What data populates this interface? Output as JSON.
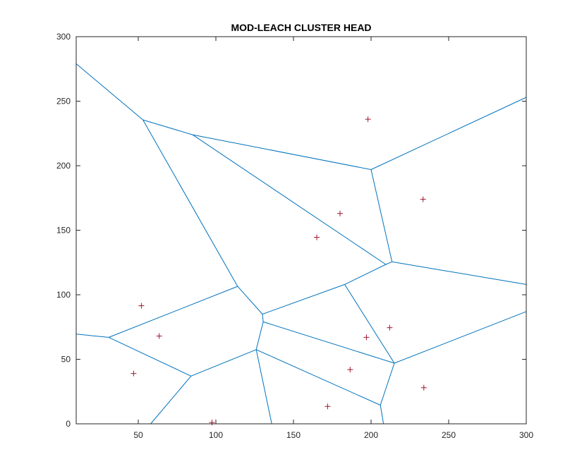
{
  "chart_data": {
    "type": "scatter",
    "title": "MOD-LEACH CLUSTER HEAD",
    "xlabel": "",
    "ylabel": "",
    "xlim": [
      10,
      300
    ],
    "ylim": [
      0,
      300
    ],
    "xticks": [
      50,
      100,
      150,
      200,
      250,
      300
    ],
    "yticks": [
      0,
      50,
      100,
      150,
      200,
      250,
      300
    ],
    "grid": false,
    "colors": {
      "edges": "#0072BD",
      "points": "#A2142F",
      "axes": "#262626"
    },
    "series": [
      {
        "marker": "plus",
        "x": [
          198,
          233.5,
          180,
          165,
          52,
          63.5,
          47,
          212,
          197,
          186.5,
          234,
          172,
          97.5
        ],
        "y": [
          236,
          174,
          163,
          144.5,
          91.5,
          68,
          39,
          74.5,
          67,
          42,
          28,
          13.5,
          1
        ]
      }
    ],
    "voronoi_edges": [
      [
        [
          10,
          279
        ],
        [
          53,
          235.5
        ]
      ],
      [
        [
          53,
          235.5
        ],
        [
          85,
          224
        ]
      ],
      [
        [
          85,
          224
        ],
        [
          200,
          197
        ]
      ],
      [
        [
          200,
          197
        ],
        [
          300,
          253
        ]
      ],
      [
        [
          85,
          224
        ],
        [
          209.5,
          123.5
        ]
      ],
      [
        [
          200,
          197
        ],
        [
          213.5,
          125.5
        ]
      ],
      [
        [
          209.5,
          123.5
        ],
        [
          213.5,
          125.5
        ]
      ],
      [
        [
          213.5,
          125.5
        ],
        [
          300,
          108
        ]
      ],
      [
        [
          209.5,
          123.5
        ],
        [
          183,
          108
        ]
      ],
      [
        [
          53,
          235.5
        ],
        [
          114,
          106.5
        ]
      ],
      [
        [
          114,
          106.5
        ],
        [
          130,
          85
        ]
      ],
      [
        [
          183,
          108
        ],
        [
          130,
          85
        ]
      ],
      [
        [
          130,
          85
        ],
        [
          130.5,
          79
        ]
      ],
      [
        [
          130.5,
          79
        ],
        [
          126,
          57.5
        ]
      ],
      [
        [
          130.5,
          79
        ],
        [
          215,
          47
        ]
      ],
      [
        [
          183,
          108
        ],
        [
          215,
          47
        ]
      ],
      [
        [
          215,
          47
        ],
        [
          300,
          87
        ]
      ],
      [
        [
          215,
          47
        ],
        [
          206,
          14.5
        ]
      ],
      [
        [
          206,
          14.5
        ],
        [
          208,
          0
        ]
      ],
      [
        [
          126,
          57.5
        ],
        [
          206,
          14.5
        ]
      ],
      [
        [
          126,
          57.5
        ],
        [
          136,
          0
        ]
      ],
      [
        [
          126,
          57.5
        ],
        [
          84,
          37
        ]
      ],
      [
        [
          114,
          106.5
        ],
        [
          31,
          67
        ]
      ],
      [
        [
          31,
          67
        ],
        [
          10,
          69.5
        ]
      ],
      [
        [
          31,
          67
        ],
        [
          84,
          37
        ]
      ],
      [
        [
          84,
          37
        ],
        [
          58,
          0
        ]
      ]
    ]
  }
}
